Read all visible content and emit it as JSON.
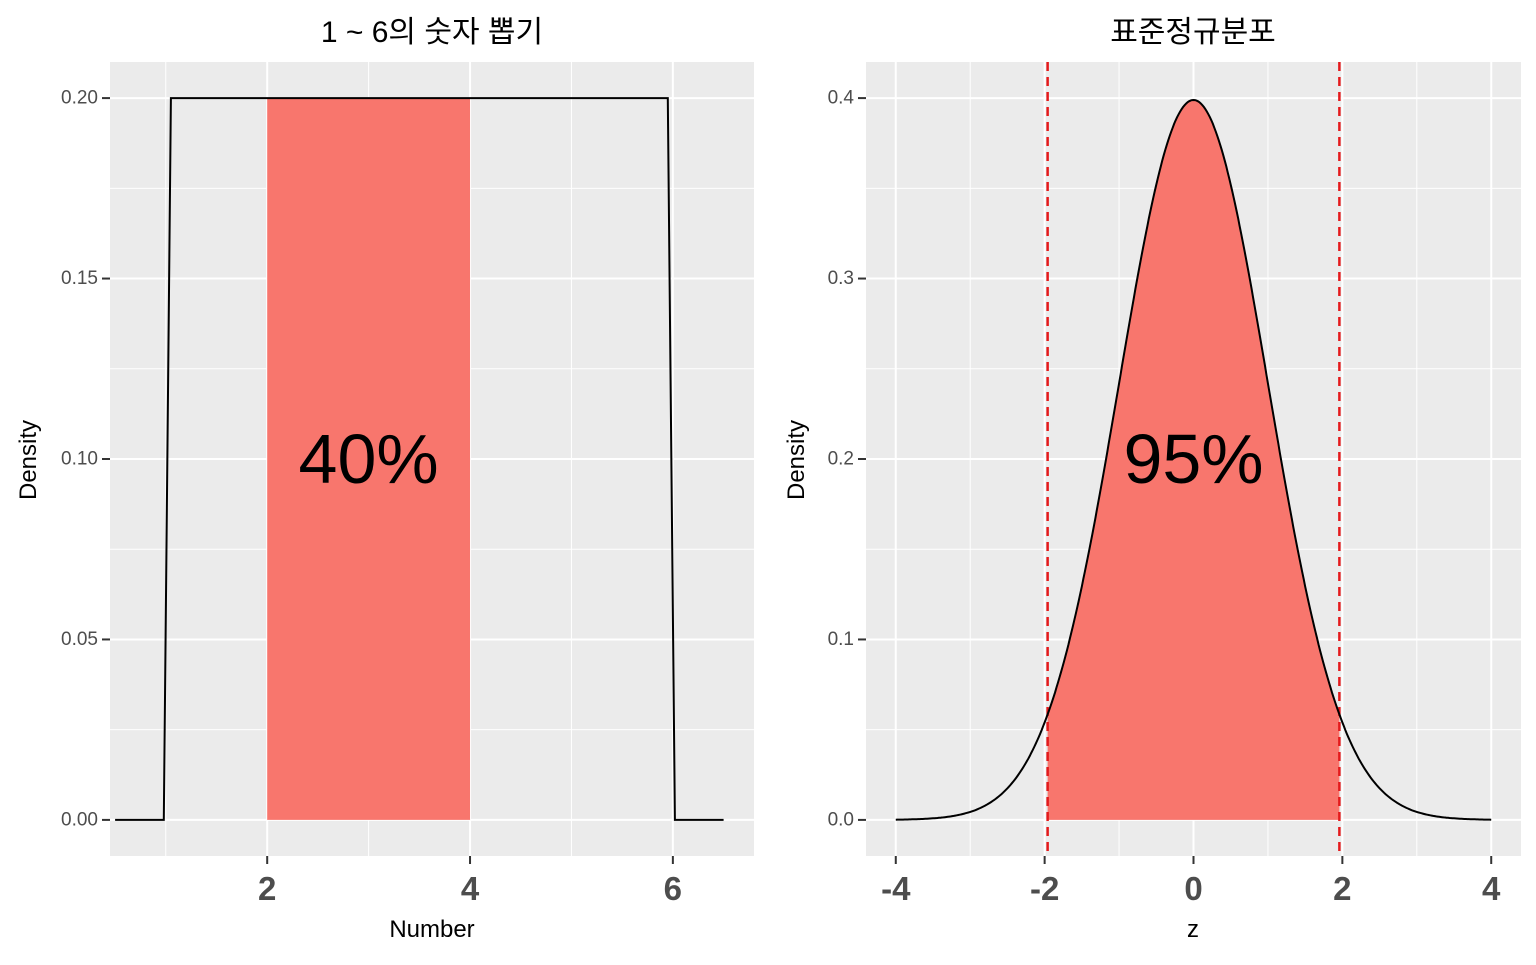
{
  "chart_data": [
    {
      "type": "area",
      "title": "1 ~ 6의 숫자 뽑기",
      "xlabel": "Number",
      "ylabel": "Density",
      "xlim": [
        0.45,
        6.8
      ],
      "ylim": [
        -0.01,
        0.21
      ],
      "x_ticks": [
        2,
        4,
        6
      ],
      "x_tick_labels": [
        "2",
        "4",
        "6"
      ],
      "x_minor_gridlines": [
        1,
        3,
        5
      ],
      "y_ticks": [
        0.0,
        0.05,
        0.1,
        0.15,
        0.2
      ],
      "y_tick_labels": [
        "0.00",
        "0.05",
        "0.10",
        "0.15",
        "0.20"
      ],
      "density_curve": {
        "x": [
          0.5,
          0.98,
          1.05,
          5.95,
          6.02,
          6.5
        ],
        "y": [
          0.0,
          0.0,
          0.2,
          0.2,
          0.0,
          0.0
        ],
        "color": "#000000"
      },
      "shaded_region": {
        "x_from": 2,
        "x_to": 4,
        "y_top": 0.2,
        "color": "#F8766D"
      },
      "annotation": {
        "text": "40%",
        "x": 3,
        "y": 0.1
      },
      "grid": true,
      "panel_background": "#EBEBEB"
    },
    {
      "type": "area",
      "title": "표준정규분포",
      "xlabel": "z",
      "ylabel": "Density",
      "xlim": [
        -4.4,
        4.4
      ],
      "ylim": [
        -0.02,
        0.42
      ],
      "x_ticks": [
        -4,
        -2,
        0,
        2,
        4
      ],
      "x_tick_labels": [
        "-4",
        "-2",
        "0",
        "2",
        "4"
      ],
      "x_minor_gridlines": [
        -3,
        -1,
        1,
        3
      ],
      "y_ticks": [
        0.0,
        0.1,
        0.2,
        0.3,
        0.4
      ],
      "y_tick_labels": [
        "0.0",
        "0.1",
        "0.2",
        "0.3",
        "0.4"
      ],
      "density_curve": {
        "distribution": "standard normal",
        "x_range": [
          -4,
          4
        ],
        "color": "#000000"
      },
      "shaded_region": {
        "x_from": -1.96,
        "x_to": 1.96,
        "color": "#F8766D"
      },
      "reference_lines": {
        "x": [
          -1.96,
          1.96
        ],
        "color": "#E41A1C",
        "style": "dashed"
      },
      "annotation": {
        "text": "95%",
        "x": 0,
        "y": 0.2
      },
      "grid": true,
      "panel_background": "#EBEBEB"
    }
  ]
}
